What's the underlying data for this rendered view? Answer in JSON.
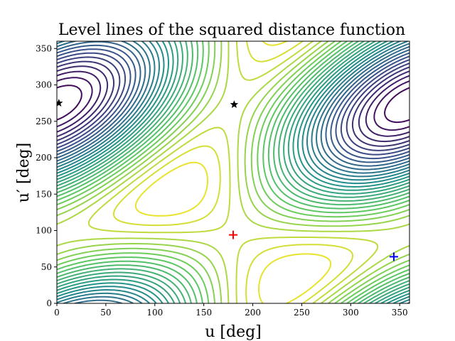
{
  "chart_data": {
    "type": "contour",
    "title": "Level lines of the squared distance function",
    "xlabel": "u [deg]",
    "ylabel": "u′ [deg]",
    "xlim": [
      0,
      360
    ],
    "ylim": [
      0,
      360
    ],
    "xticks": [
      0,
      50,
      100,
      150,
      200,
      250,
      300,
      350
    ],
    "yticks": [
      0,
      50,
      100,
      150,
      200,
      250,
      300,
      350
    ],
    "colormap": "viridis",
    "markers": [
      {
        "kind": "star",
        "color": "#000000",
        "x": 2,
        "y": 275
      },
      {
        "kind": "star",
        "color": "#000000",
        "x": 181,
        "y": 273
      },
      {
        "kind": "plus",
        "color": "#ff0000",
        "x": 180,
        "y": 94
      },
      {
        "kind": "plus",
        "color": "#0000ff",
        "x": 344,
        "y": 64
      }
    ]
  }
}
